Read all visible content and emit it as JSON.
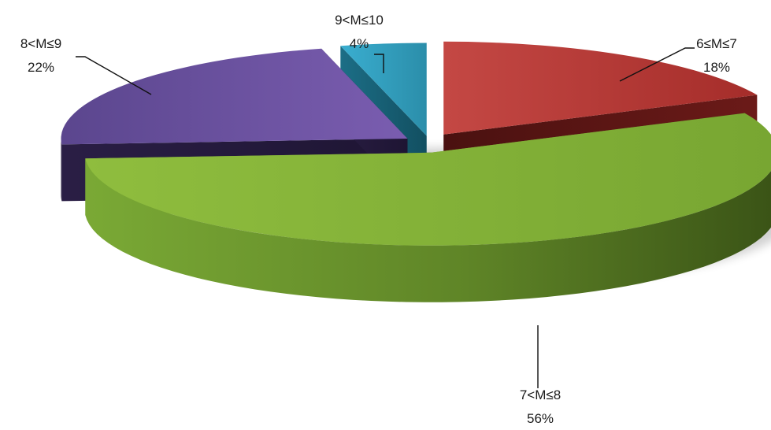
{
  "chart_data": {
    "type": "pie",
    "title": "",
    "categories": [
      "6≤M≤7",
      "7<M≤8",
      "8<M≤9",
      "9<M≤10"
    ],
    "values": [
      18,
      56,
      22,
      4
    ],
    "labels": [
      "18%",
      "56%",
      "22%",
      "4%"
    ],
    "colors": [
      "#b33a36",
      "#7faa36",
      "#4e3a7e",
      "#2f9bb8"
    ],
    "explode": true,
    "legend": "none"
  }
}
